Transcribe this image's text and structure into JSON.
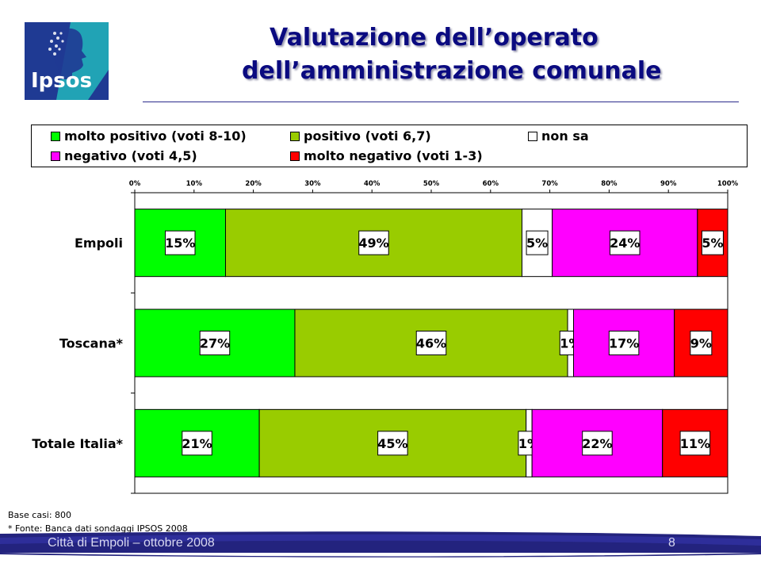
{
  "logo": {
    "text": "Ipsos"
  },
  "title": {
    "line1": "Valutazione dell’operato",
    "line2": "dell’amministrazione comunale"
  },
  "legend": {
    "items": [
      {
        "label": "molto positivo (voti 8-10)",
        "color": "#00ff00"
      },
      {
        "label": "positivo (voti 6,7)",
        "color": "#99cc00"
      },
      {
        "label": "non sa",
        "color": "#ffffff"
      },
      {
        "label": "negativo (voti 4,5)",
        "color": "#ff00ff"
      },
      {
        "label": "molto negativo (voti 1-3)",
        "color": "#ff0000"
      }
    ]
  },
  "chart_data": {
    "type": "bar",
    "orientation": "horizontal-stacked-100",
    "categories": [
      "Empoli",
      "Toscana*",
      "Totale Italia*"
    ],
    "x_ticks": [
      "0%",
      "10%",
      "20%",
      "30%",
      "40%",
      "50%",
      "60%",
      "70%",
      "80%",
      "90%",
      "100%"
    ],
    "xlim": [
      0,
      100
    ],
    "series": [
      {
        "name": "molto positivo (voti 8-10)",
        "color": "#00ff00",
        "values": [
          15,
          27,
          21
        ],
        "labels": [
          "15%",
          "27%",
          "21%"
        ]
      },
      {
        "name": "positivo (voti 6,7)",
        "color": "#99cc00",
        "values": [
          49,
          46,
          45
        ],
        "labels": [
          "49%",
          "46%",
          "45%"
        ]
      },
      {
        "name": "non sa",
        "color": "#ffffff",
        "values": [
          5,
          1,
          1
        ],
        "labels": [
          "5%",
          "1%",
          "1%"
        ]
      },
      {
        "name": "negativo (voti 4,5)",
        "color": "#ff00ff",
        "values": [
          24,
          17,
          22
        ],
        "labels": [
          "24%",
          "17%",
          "22%"
        ]
      },
      {
        "name": "molto negativo (voti 1-3)",
        "color": "#ff0000",
        "values": [
          5,
          9,
          11
        ],
        "labels": [
          "5%",
          "9%",
          "11%"
        ]
      }
    ]
  },
  "notes": {
    "base": "Base casi: 800",
    "source": "* Fonte: Banca dati sondaggi IPSOS 2008"
  },
  "footer": {
    "text": "Città di Empoli – ottobre 2008",
    "page": "8"
  }
}
